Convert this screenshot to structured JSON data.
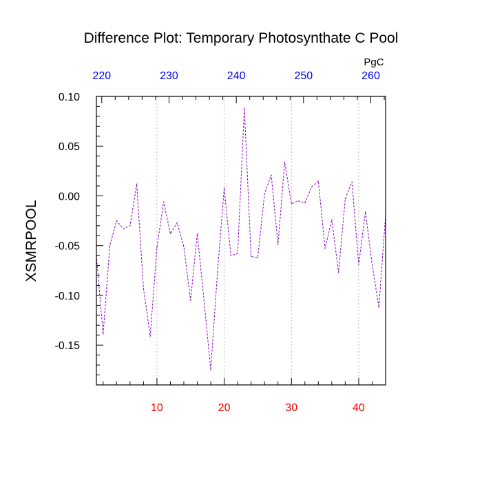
{
  "chart_data": {
    "type": "line",
    "title": "Difference Plot: Temporary Photosynthate C Pool",
    "ylabel": "XSMRPOOL",
    "top_axis_unit": "PgC",
    "xlim": [
      1,
      44
    ],
    "ylim": [
      -0.19,
      0.1
    ],
    "x_ticks": [
      10,
      20,
      30,
      40
    ],
    "x_tick_labels": [
      "10",
      "20",
      "30",
      "40"
    ],
    "y_ticks": [
      0.1,
      0.05,
      0.0,
      -0.05,
      -0.1,
      -0.15
    ],
    "y_tick_labels": [
      "0.10",
      "0.05",
      "0.00",
      "-0.05",
      "-0.10",
      "-0.15"
    ],
    "top_ticks": [
      220,
      230,
      240,
      250,
      260
    ],
    "top_tick_labels": [
      "220",
      "230",
      "240",
      "250",
      "260"
    ],
    "top_axis_map": {
      "x_at_1": 219.2,
      "per_x_unit": 1.0
    },
    "grid": {
      "vertical": true,
      "horizontal": false
    },
    "colors": {
      "line": "#8a00c8",
      "x_tick_labels": "#ff0000",
      "top_tick_labels": "#0000ff",
      "grid": "#aaaaaa",
      "axes": "#000000"
    },
    "series": [
      {
        "x": [
          1,
          2,
          3,
          4,
          5,
          6,
          7,
          8,
          9,
          10,
          11,
          12,
          13,
          14,
          15,
          16,
          17,
          18,
          19,
          20,
          21,
          22,
          23,
          24,
          25,
          26,
          27,
          28,
          29,
          30,
          31,
          32,
          33,
          34,
          35,
          36,
          37,
          38,
          39,
          40,
          41,
          42,
          43,
          44
        ],
        "values": [
          -0.06,
          -0.139,
          -0.05,
          -0.025,
          -0.033,
          -0.03,
          0.012,
          -0.093,
          -0.141,
          -0.052,
          -0.006,
          -0.038,
          -0.027,
          -0.051,
          -0.105,
          -0.038,
          -0.105,
          -0.175,
          -0.077,
          0.008,
          -0.06,
          -0.058,
          0.088,
          -0.061,
          -0.062,
          0.002,
          0.021,
          -0.049,
          0.034,
          -0.008,
          -0.005,
          -0.007,
          0.009,
          0.015,
          -0.053,
          -0.024,
          -0.077,
          -0.003,
          0.014,
          -0.069,
          -0.016,
          -0.069,
          -0.112,
          -0.019
        ]
      }
    ]
  }
}
